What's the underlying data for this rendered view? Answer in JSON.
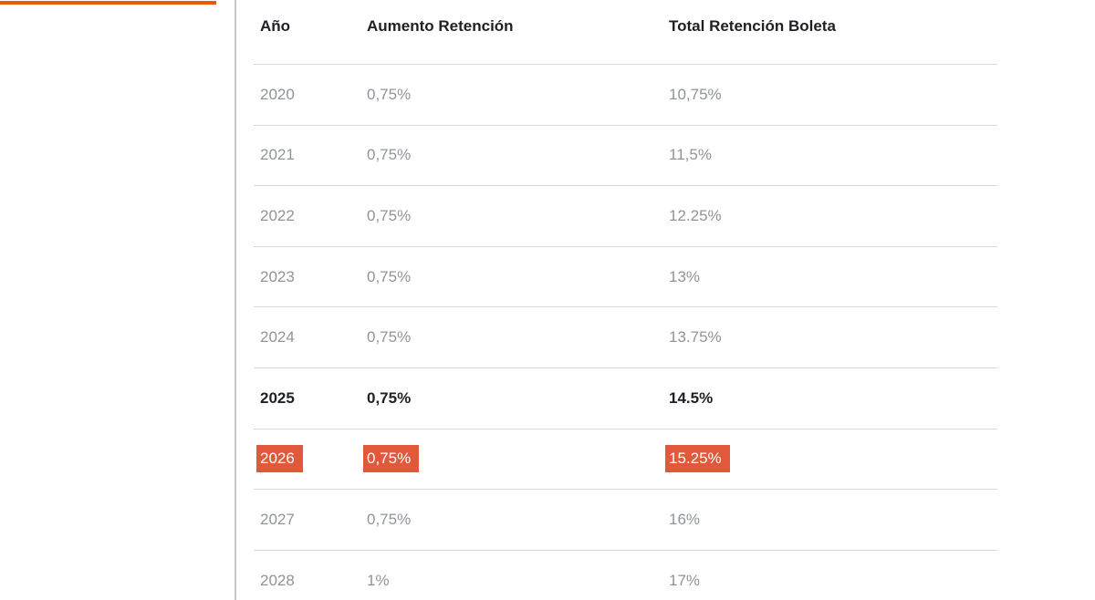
{
  "colors": {
    "accent_bar": "#e8590c",
    "highlight": "#e2583a",
    "divider": "#d9d9d9",
    "header_text": "#1d2125",
    "cell_text": "#909499",
    "vertical_line": "#c7c7c7",
    "background": "#ffffff",
    "highlight_text": "#ffffff"
  },
  "table": {
    "columns": [
      {
        "key": "year",
        "label": "Año"
      },
      {
        "key": "aumento",
        "label": "Aumento Retención"
      },
      {
        "key": "total",
        "label": "Total Retención Boleta"
      }
    ],
    "rows": [
      {
        "year": "2020",
        "aumento": "0,75%",
        "total": "10,75%",
        "style": "normal"
      },
      {
        "year": "2021",
        "aumento": "0,75%",
        "total": "11,5%",
        "style": "normal"
      },
      {
        "year": "2022",
        "aumento": "0,75%",
        "total": "12.25%",
        "style": "normal"
      },
      {
        "year": "2023",
        "aumento": "0,75%",
        "total": "13%",
        "style": "normal"
      },
      {
        "year": "2024",
        "aumento": "0,75%",
        "total": "13.75%",
        "style": "normal"
      },
      {
        "year": "2025",
        "aumento": "0,75%",
        "total": "14.5%",
        "style": "bold"
      },
      {
        "year": "2026",
        "aumento": "0,75%",
        "total": "15.25%",
        "style": "highlight"
      },
      {
        "year": "2027",
        "aumento": "0,75%",
        "total": "16%",
        "style": "normal"
      },
      {
        "year": "2028",
        "aumento": "1%",
        "total": "17%",
        "style": "normal"
      }
    ]
  }
}
